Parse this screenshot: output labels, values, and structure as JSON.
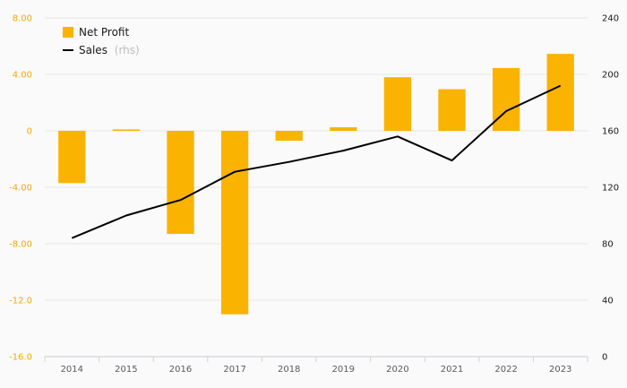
{
  "chart_data": {
    "type": "bar",
    "title": "",
    "xlabel": "",
    "ylabel": "",
    "categories": [
      "2014",
      "2015",
      "2016",
      "2017",
      "2018",
      "2019",
      "2020",
      "2021",
      "2022",
      "2023"
    ],
    "ylim": [
      -16,
      8
    ],
    "y2lim": [
      0,
      240
    ],
    "yticks": [
      "8.00",
      "4.00",
      "0",
      "-4.00",
      "-8.00",
      "-12.0",
      "-16.0"
    ],
    "y2ticks": [
      "240",
      "200",
      "160",
      "120",
      "80",
      "40",
      "0"
    ],
    "series": [
      {
        "name": "Net Profit",
        "type": "bar",
        "axis": "left",
        "color": "#fab300",
        "values": [
          -3.7,
          0.1,
          -7.3,
          -13.0,
          -0.7,
          0.25,
          3.8,
          2.95,
          4.45,
          5.45
        ]
      },
      {
        "name": "Sales",
        "name_suffix": "(rhs)",
        "type": "line",
        "axis": "right",
        "color": "#000000",
        "values": [
          84,
          100,
          111,
          131,
          138,
          146,
          156,
          139,
          174,
          192
        ]
      }
    ],
    "grid": true,
    "legend": "top-left"
  }
}
